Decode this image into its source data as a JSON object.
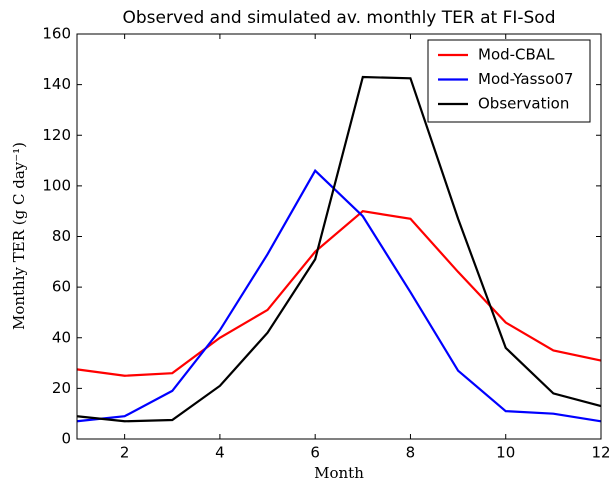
{
  "chart_data": {
    "type": "line",
    "title": "Observed and simulated av. monthly TER at FI-Sod",
    "x_label": "Month",
    "y_label": "Monthly TER (g C day⁻¹)",
    "x": [
      1,
      2,
      3,
      4,
      5,
      6,
      7,
      8,
      9,
      10,
      11,
      12
    ],
    "series": [
      {
        "name": "Mod-CBAL",
        "color": "#ff0000",
        "values": [
          27.5,
          25,
          26,
          40,
          51,
          74,
          90,
          87,
          66,
          46,
          35,
          31
        ]
      },
      {
        "name": "Mod-Yasso07",
        "color": "#0000ff",
        "values": [
          7,
          9,
          19,
          43,
          73,
          106,
          88,
          58,
          27,
          11,
          10,
          7
        ]
      },
      {
        "name": "Observation",
        "color": "#000000",
        "values": [
          9,
          7,
          7.5,
          21,
          42,
          71,
          143,
          142.5,
          87,
          36,
          18,
          13
        ]
      }
    ],
    "xlim": [
      1,
      12
    ],
    "xticks": [
      2,
      4,
      6,
      8,
      10,
      12
    ],
    "ylim": [
      0,
      160
    ],
    "yticks": [
      0,
      20,
      40,
      60,
      80,
      100,
      120,
      140,
      160
    ],
    "grid": false,
    "legend": "upper right"
  }
}
